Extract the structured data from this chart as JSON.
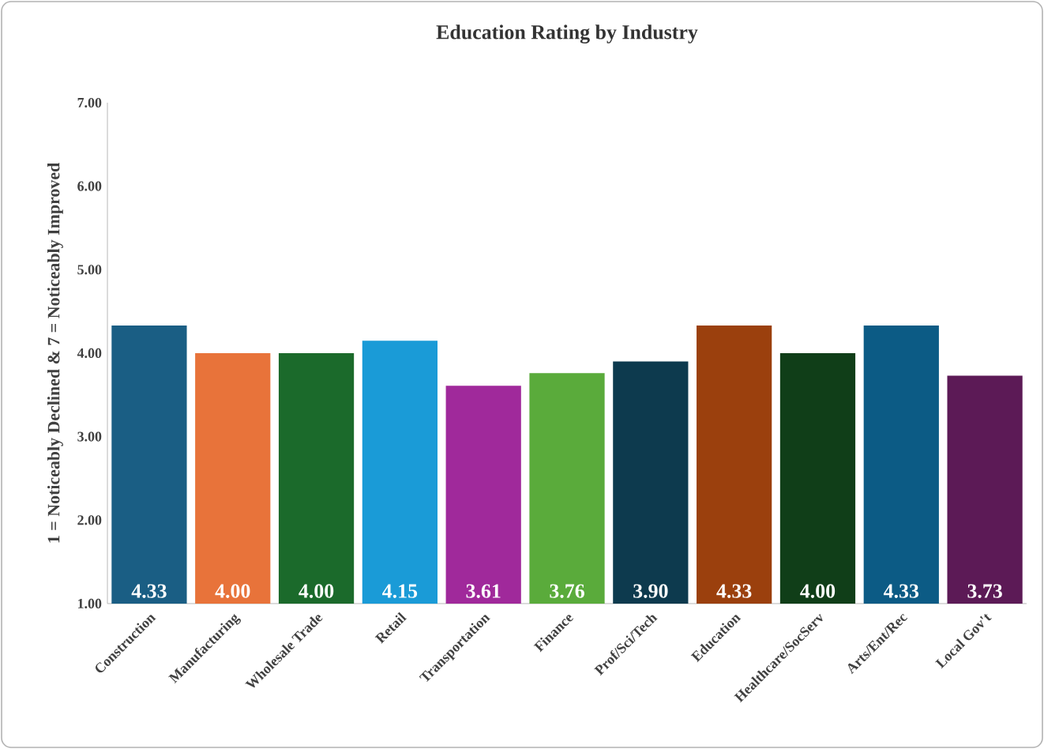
{
  "chart_data": {
    "type": "bar",
    "title": "Education Rating by Industry",
    "ylabel": "1 = Noticeably Declined & 7 = Noticeably  Improved",
    "categories": [
      "Construction",
      "Manufacturing",
      "Wholesale Trade",
      "Retail",
      "Transportation",
      "Finance",
      "Prof/Sci/Tech",
      "Education",
      "Healthcare/SocServ",
      "Arts/Ent/Rec",
      "Local Gov't"
    ],
    "values": [
      4.33,
      4.0,
      4.0,
      4.15,
      3.61,
      3.76,
      3.9,
      4.33,
      4.0,
      4.33,
      3.73
    ],
    "value_labels": [
      "4.33",
      "4.00",
      "4.00",
      "4.15",
      "3.61",
      "3.76",
      "3.90",
      "4.33",
      "4.00",
      "4.33",
      "3.73"
    ],
    "colors": [
      "#1a5e84",
      "#e8733a",
      "#1b6a2b",
      "#1a9bd7",
      "#a0299b",
      "#5aab3b",
      "#0d3a4e",
      "#9b400d",
      "#103e18",
      "#0c5b85",
      "#5c1a56"
    ],
    "ylim": [
      1,
      7
    ],
    "yticks": [
      {
        "value": 1,
        "label": "1.00"
      },
      {
        "value": 2,
        "label": "2.00"
      },
      {
        "value": 3,
        "label": "3.00"
      },
      {
        "value": 4,
        "label": "4.00"
      },
      {
        "value": 5,
        "label": "5.00"
      },
      {
        "value": 6,
        "label": "6.00"
      },
      {
        "value": 7,
        "label": "7.00"
      }
    ],
    "grid": false
  }
}
